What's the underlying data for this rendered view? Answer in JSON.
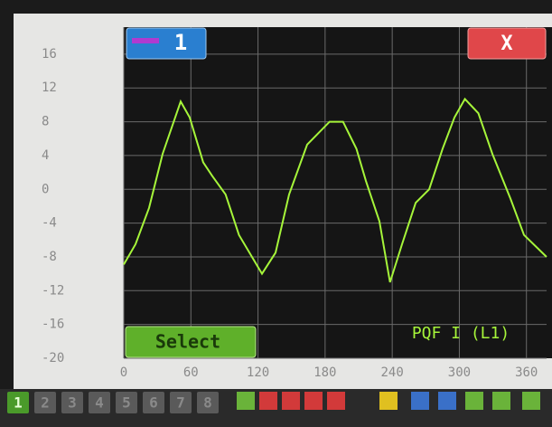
{
  "buttons": {
    "channel": "1",
    "close": "X",
    "select": "Select"
  },
  "toolbar": {
    "pages": [
      "1",
      "2",
      "3",
      "4",
      "5",
      "6",
      "7",
      "8"
    ]
  },
  "chart_data": {
    "type": "line",
    "title": "PQF I (L1)",
    "x": [
      0,
      10.5,
      22.6,
      34.7,
      50.9,
      59,
      71,
      79,
      91,
      103,
      123.6,
      135.7,
      147.8,
      164,
      184,
      196,
      208,
      216.5,
      228.6,
      238,
      248.8,
      261,
      273,
      285,
      295.6,
      305,
      317,
      329.5,
      345.7,
      357.8,
      378
    ],
    "values": [
      -8.9,
      -6.5,
      -2.2,
      4.2,
      10.4,
      8.5,
      3.2,
      1.6,
      -0.6,
      -5.4,
      -10,
      -7.5,
      -0.6,
      5.3,
      8,
      8,
      4.8,
      1,
      -3.8,
      -11,
      -6.5,
      -1.6,
      0,
      4.8,
      8.5,
      10.7,
      9,
      4.2,
      -1.1,
      -5.4,
      -8
    ],
    "color": "#a6f53a",
    "xlim": [
      0,
      378
    ],
    "xticks": [
      0,
      60,
      120,
      180,
      240,
      300,
      360
    ],
    "ylim": [
      -20,
      19.2
    ],
    "yticks": [
      16,
      12,
      8,
      4,
      0,
      -4,
      -8,
      -12,
      -16,
      -20
    ],
    "grid": true
  }
}
